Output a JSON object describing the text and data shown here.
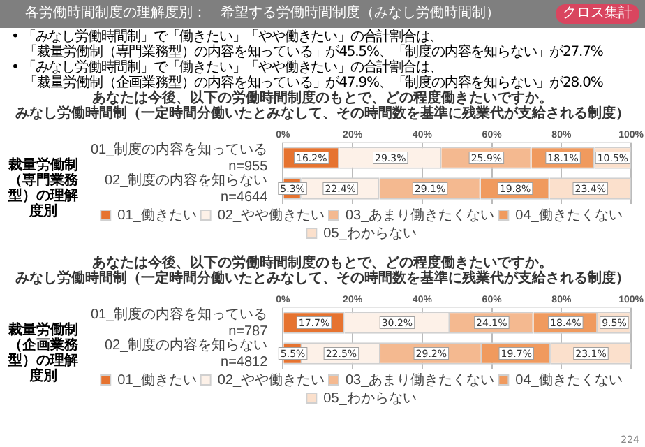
{
  "chart_data": [
    {
      "type": "bar",
      "orientation": "horizontal",
      "stacked": true,
      "title": "あなたは今後、以下の労働時間制度のもとで、どの程度働きたいですか。",
      "subtitle": "みなし労働時間制（一定時間分働いたとみなして、その時間数を基準に残業代が支給される制度）",
      "ylabel": "裁量労働制（専門業務型）の理解度別",
      "annotations": [
        "各労働時間制度の理解度別：　希望する労働時間制度（みなし労働時間制）",
        "クロス集計",
        "• 「みなし労働時間制」で「働きたい」「やや働きたい」の合計割合は、",
        "「裁量労働制（専門業務型）の内容を知っている」が45.5%、「制度の内容を知らない」が27.7%",
        "• 「みなし労働時間制」で「働きたい」「やや働きたい」の合計割合は、",
        "「裁量労働制（企画業務型）の内容を知っている」が47.9%、「制度の内容を知らない」が28.0%"
      ],
      "categories": [
        "01_制度の内容を知っている\nn=955",
        "02_制度の内容を知らない\nn=4644"
      ],
      "xlim": [
        0,
        100
      ],
      "xticks": [
        {
          "value": 0,
          "label": "0%"
        },
        {
          "value": 20,
          "label": "20%"
        },
        {
          "value": 40,
          "label": "40%"
        },
        {
          "value": 60,
          "label": "60%"
        },
        {
          "value": 80,
          "label": "80%"
        },
        {
          "value": 100,
          "label": "100%"
        }
      ],
      "grid": "x",
      "legend": "bottom",
      "series": [
        {
          "name": "01_働きたい",
          "color": "#e67330",
          "values": [
            16.2,
            5.3
          ],
          "value_labels": [
            "16.2%",
            "5.3%"
          ]
        },
        {
          "name": "02_やや働きたい",
          "color": "#fdf1e8",
          "values": [
            29.3,
            22.4
          ],
          "value_labels": [
            "29.3%",
            "22.4%"
          ]
        },
        {
          "name": "03_あまり働きたくない",
          "color": "#f4b990",
          "values": [
            25.9,
            29.1
          ],
          "value_labels": [
            "25.9%",
            "29.1%"
          ]
        },
        {
          "name": "04_働きたくない",
          "color": "#f09a5e",
          "values": [
            18.1,
            19.8
          ],
          "value_labels": [
            "18.1%",
            "19.8%"
          ]
        },
        {
          "name": "05_わからない",
          "color": "#fbe0cc",
          "values": [
            10.5,
            23.4
          ],
          "value_labels": [
            "10.5%",
            "23.4%"
          ]
        }
      ]
    },
    {
      "type": "bar",
      "orientation": "horizontal",
      "stacked": true,
      "title": "あなたは今後、以下の労働時間制度のもとで、どの程度働きたいですか。",
      "subtitle": "みなし労働時間制（一定時間分働いたとみなして、その時間数を基準に残業代が支給される制度）",
      "ylabel": "裁量労働制（企画業務型）の理解度別",
      "annotations": [
        "224"
      ],
      "categories": [
        "01_制度の内容を知っている\nn=787",
        "02_制度の内容を知らない\nn=4812"
      ],
      "xlim": [
        0,
        100
      ],
      "xticks": [
        {
          "value": 0,
          "label": "0%"
        },
        {
          "value": 20,
          "label": "20%"
        },
        {
          "value": 40,
          "label": "40%"
        },
        {
          "value": 60,
          "label": "60%"
        },
        {
          "value": 80,
          "label": "80%"
        },
        {
          "value": 100,
          "label": "100%"
        }
      ],
      "grid": "x",
      "legend": "bottom",
      "series": [
        {
          "name": "01_働きたい",
          "color": "#e67330",
          "values": [
            17.7,
            5.5
          ],
          "value_labels": [
            "17.7%",
            "5.5%"
          ]
        },
        {
          "name": "02_やや働きたい",
          "color": "#fdf1e8",
          "values": [
            30.2,
            22.5
          ],
          "value_labels": [
            "30.2%",
            "22.5%"
          ]
        },
        {
          "name": "03_あまり働きたくない",
          "color": "#f4b990",
          "values": [
            24.1,
            29.2
          ],
          "value_labels": [
            "24.1%",
            "29.2%"
          ]
        },
        {
          "name": "04_働きたくない",
          "color": "#f09a5e",
          "values": [
            18.4,
            19.7
          ],
          "value_labels": [
            "18.4%",
            "19.7%"
          ]
        },
        {
          "name": "05_わからない",
          "color": "#fbe0cc",
          "values": [
            9.5,
            23.1
          ],
          "value_labels": [
            "9.5%",
            "23.1%"
          ]
        }
      ]
    }
  ]
}
